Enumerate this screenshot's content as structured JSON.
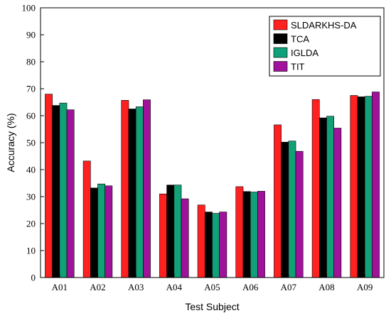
{
  "chart_data": {
    "type": "bar",
    "title": "",
    "xlabel": "Test Subject",
    "ylabel": "Accuracy (%)",
    "ylim": [
      0,
      100
    ],
    "yticks": [
      0,
      10,
      20,
      30,
      40,
      50,
      60,
      70,
      80,
      90,
      100
    ],
    "categories": [
      "A01",
      "A02",
      "A03",
      "A04",
      "A05",
      "A06",
      "A07",
      "A08",
      "A09"
    ],
    "legend_position": "top-right",
    "grid": false,
    "series": [
      {
        "name": "SLDARKHS-DA",
        "color": "#ff2020",
        "values": [
          68.0,
          43.2,
          65.7,
          31.0,
          26.9,
          33.7,
          56.6,
          66.0,
          67.5
        ]
      },
      {
        "name": "TCA",
        "color": "#000000",
        "values": [
          63.8,
          33.2,
          62.5,
          34.3,
          24.3,
          31.9,
          50.2,
          59.2,
          67.0
        ]
      },
      {
        "name": "IGLDA",
        "color": "#12a078",
        "values": [
          64.7,
          34.7,
          63.3,
          34.3,
          23.8,
          31.7,
          50.6,
          59.8,
          67.2
        ]
      },
      {
        "name": "TIT",
        "color": "#a0129a",
        "values": [
          62.2,
          34.0,
          65.9,
          29.2,
          24.3,
          32.0,
          46.8,
          55.4,
          68.8
        ]
      }
    ]
  }
}
